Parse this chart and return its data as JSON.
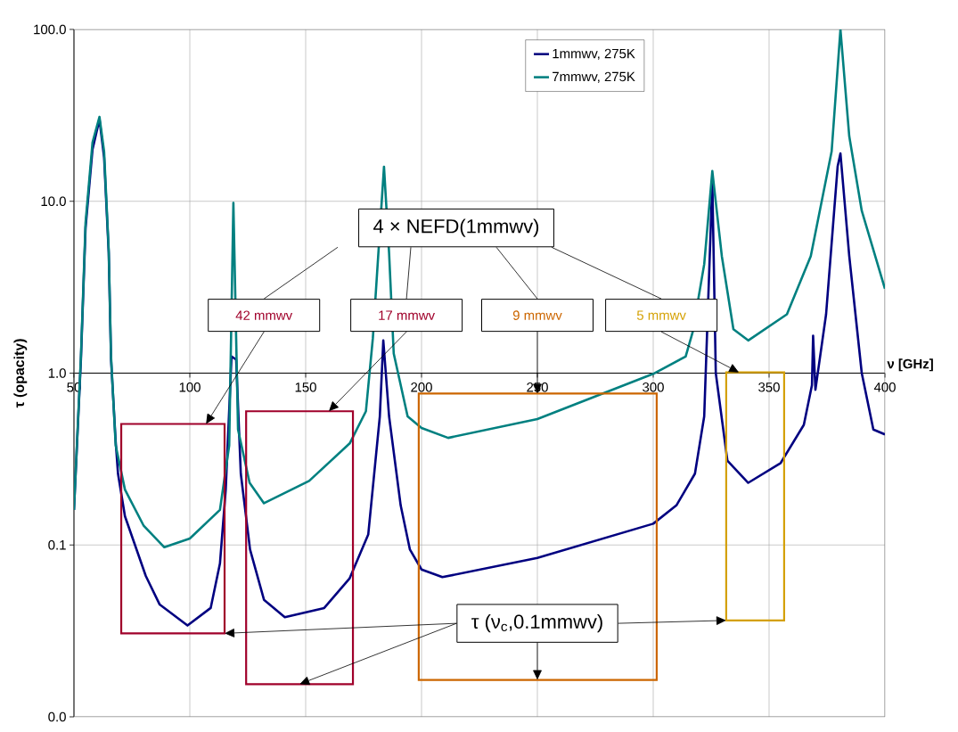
{
  "chart_data": {
    "type": "line",
    "xlabel": "ν [GHz]",
    "ylabel": "τ (opacity)",
    "x": [
      50,
      53,
      55,
      58,
      61,
      63,
      65,
      66,
      68,
      69,
      72,
      81,
      87,
      99,
      109,
      113,
      115.5,
      118,
      118.8,
      120,
      122,
      126,
      132,
      141,
      158,
      169,
      177,
      182,
      183.5,
      186,
      191,
      195,
      200,
      209,
      250,
      300,
      310,
      318,
      322,
      325.5,
      327,
      332,
      341,
      355,
      365,
      368.5,
      369,
      370,
      374.6,
      379.6,
      380.8,
      384.6,
      390,
      395,
      400
    ],
    "series": [
      {
        "name": "1mmwv, 275K",
        "color": "#000080",
        "values": [
          0.16,
          1.2,
          7,
          20,
          30,
          18,
          5,
          1.2,
          0.4,
          0.26,
          0.147,
          0.066,
          0.045,
          0.034,
          0.043,
          0.078,
          0.21,
          1.25,
          null,
          1.2,
          0.26,
          0.094,
          0.048,
          0.038,
          0.043,
          0.064,
          0.115,
          0.56,
          1.55,
          0.56,
          0.17,
          0.094,
          0.072,
          0.065,
          0.084,
          0.133,
          0.17,
          0.26,
          0.56,
          13,
          1.0,
          0.31,
          0.23,
          0.3,
          0.5,
          0.85,
          1.65,
          0.8,
          2.2,
          16,
          19,
          4.8,
          1.0,
          0.47,
          0.44
        ]
      },
      {
        "name": "7mmwv, 275K",
        "color": "#008080",
        "x": [
          50,
          53,
          55,
          58,
          61,
          63,
          65,
          66,
          68,
          72,
          80,
          89,
          100,
          113,
          117,
          118.8,
          120.8,
          125.8,
          132,
          151.5,
          169,
          176,
          179,
          183.8,
          186,
          188,
          194,
          200,
          211.5,
          250,
          300,
          314,
          317,
          322,
          325.5,
          329.6,
          334.6,
          341,
          357.7,
          368,
          377,
          380.8,
          384.6,
          390,
          400
        ],
        "values": [
          0.16,
          1.25,
          7.5,
          22,
          31,
          19.5,
          5.2,
          1.25,
          0.38,
          0.21,
          0.13,
          0.097,
          0.109,
          0.16,
          0.38,
          9.8,
          0.47,
          0.23,
          0.175,
          0.236,
          0.39,
          0.6,
          1.6,
          15.9,
          5,
          1.3,
          0.56,
          0.48,
          0.42,
          0.54,
          0.99,
          1.25,
          1.73,
          4.3,
          15,
          4.8,
          1.8,
          1.55,
          2.2,
          4.8,
          19.5,
          100,
          23.9,
          8.8,
          3.1
        ]
      }
    ],
    "xlim": [
      50,
      400
    ],
    "xticks": [
      50,
      100,
      150,
      200,
      250,
      300,
      350,
      400
    ],
    "log": "y",
    "ylim": [
      0.01,
      100
    ],
    "yticks": [
      {
        "value": 0.01,
        "label": "0.0"
      },
      0.1,
      {
        "value": 1,
        "label": "1.0"
      },
      {
        "value": 10,
        "label": "10.0"
      },
      {
        "value": 100,
        "label": "100.0"
      }
    ],
    "grid": true,
    "legend": "top",
    "annotations": [
      "4 × NEFD(1mmwv)",
      "42 mmwv",
      "17 mmwv",
      "9 mmwv",
      "5 mmwv",
      "τ (ν$_{c}$,0.1mmwv)"
    ]
  }
}
